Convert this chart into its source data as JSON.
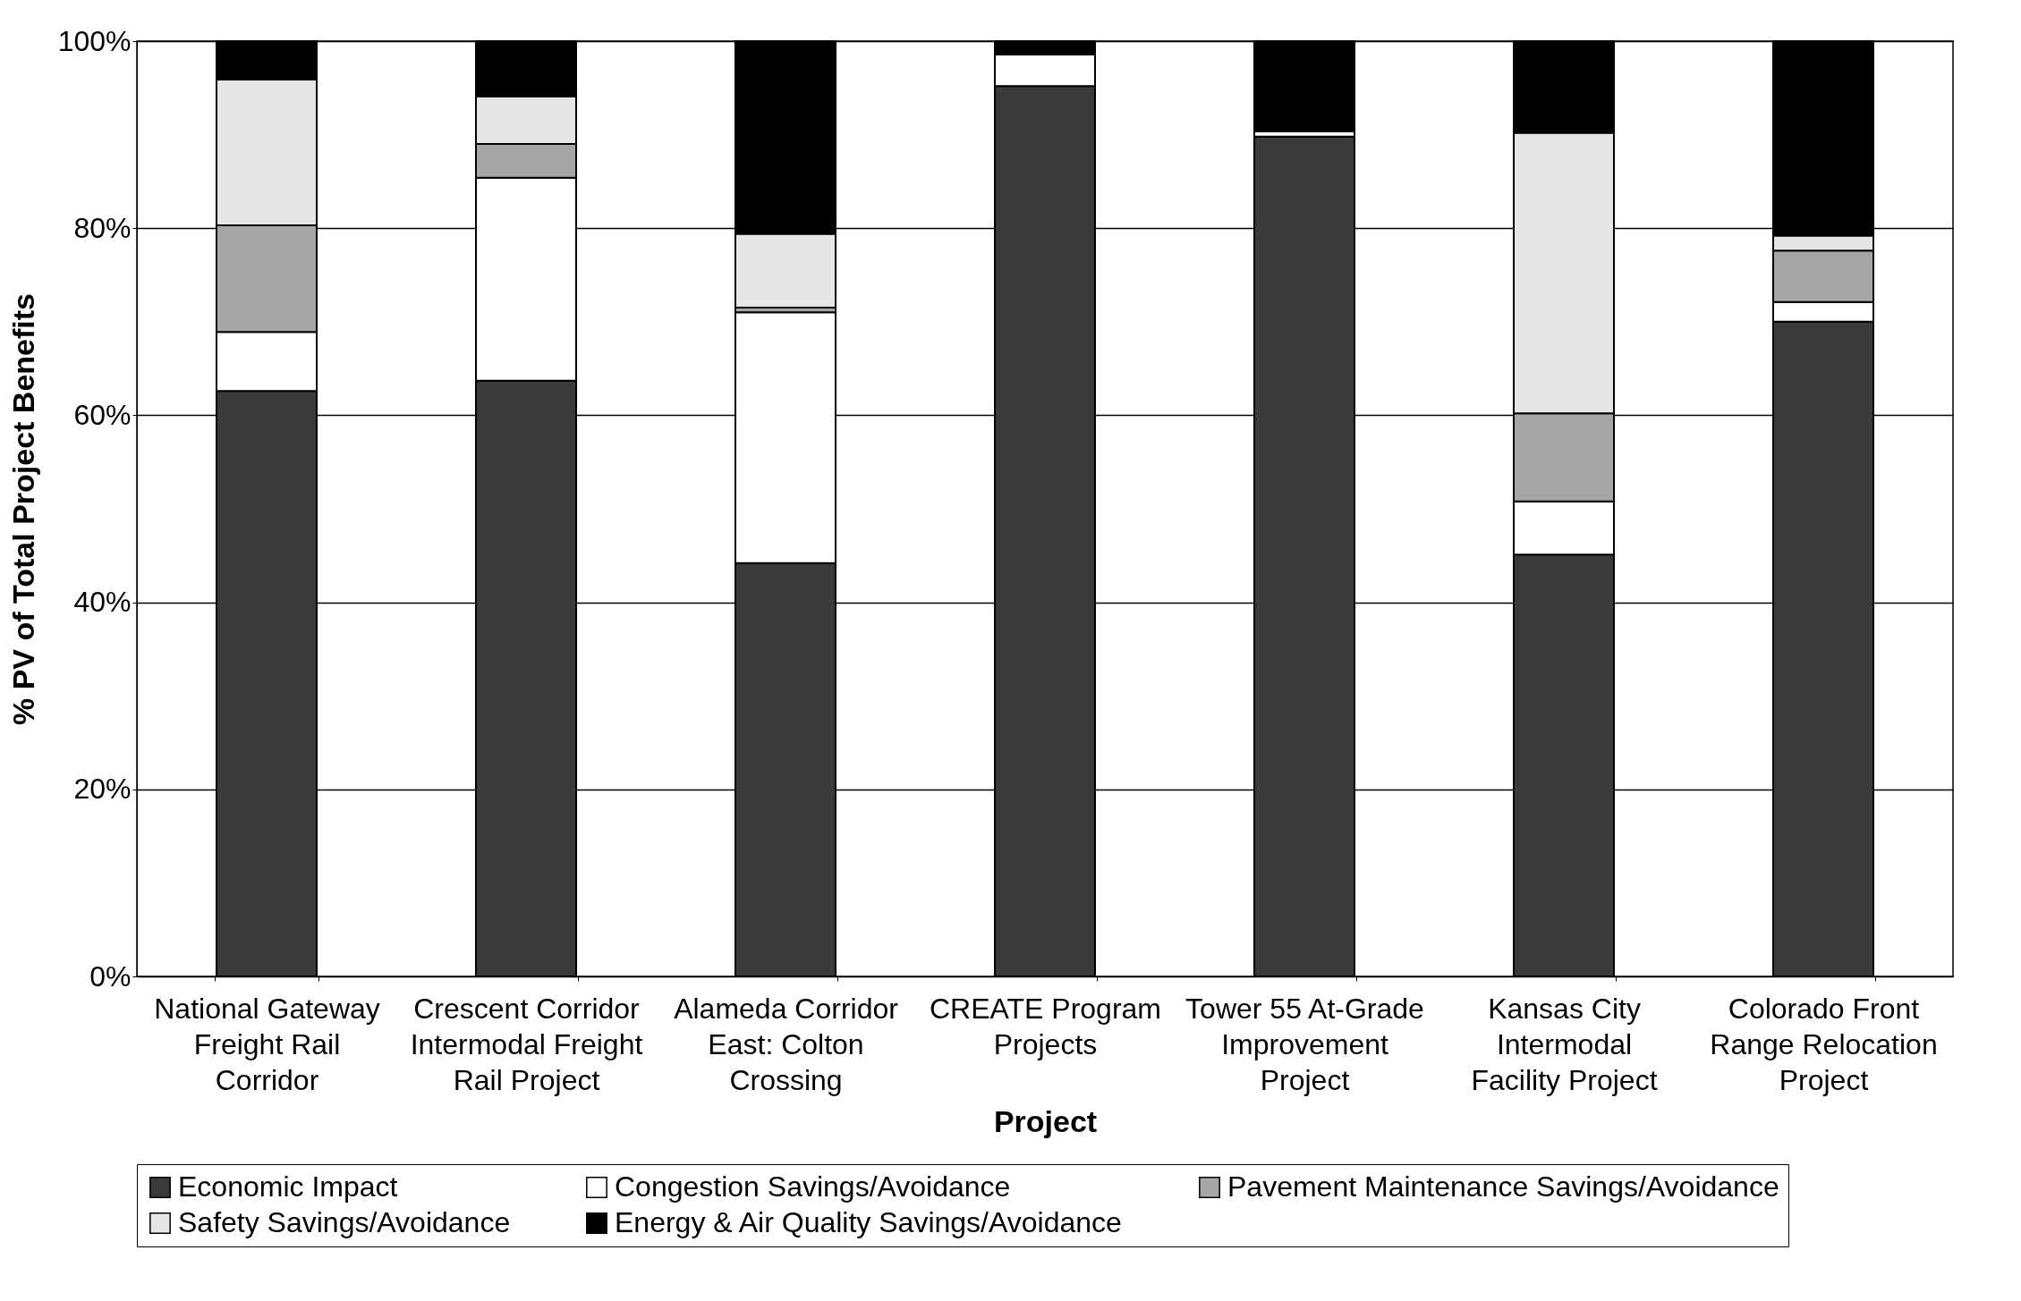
{
  "chart_data": {
    "type": "bar",
    "stacked": true,
    "xlabel": "Project",
    "ylabel": "% PV of Total Project Benefits",
    "categories": [
      "National Gateway Freight Rail Corridor",
      "Crescent Corridor Intermodal Freight Rail Project",
      "Alameda Corridor East: Colton Crossing",
      "CREATE Program Projects",
      "Tower 55 At-Grade Improvement Project",
      "Kansas City Intermodal Facility Project",
      "Colorado Front Range Relocation Project"
    ],
    "series": [
      {
        "name": "Economic Impact",
        "color": "#3a3a3a",
        "values": [
          62.6,
          63.7,
          44.2,
          95.2,
          89.8,
          45.1,
          70.0
        ]
      },
      {
        "name": "Congestion Savings/Avoidance",
        "color": "#ffffff",
        "values": [
          6.3,
          21.7,
          26.8,
          3.4,
          0.6,
          5.7,
          2.1
        ]
      },
      {
        "name": "Pavement Maintenance Savings/Avoidance",
        "color": "#a6a6a6",
        "values": [
          11.4,
          3.6,
          0.5,
          0,
          0,
          9.4,
          5.5
        ]
      },
      {
        "name": "Safety Savings/Avoidance",
        "color": "#e6e6e6",
        "values": [
          15.6,
          5.1,
          7.9,
          0,
          0,
          30.0,
          1.6
        ]
      },
      {
        "name": "Energy & Air Quality Savings/Avoidance",
        "color": "#000000",
        "values": [
          4.1,
          5.9,
          20.6,
          1.4,
          9.6,
          9.8,
          20.8
        ]
      }
    ],
    "ylim": [
      0,
      100
    ],
    "yticks": [
      {
        "value": 0,
        "label": "0%"
      },
      {
        "value": 20,
        "label": "20%"
      },
      {
        "value": 40,
        "label": "40%"
      },
      {
        "value": 60,
        "label": "60%"
      },
      {
        "value": 80,
        "label": "80%"
      },
      {
        "value": 100,
        "label": "100%"
      }
    ],
    "grid": "y",
    "legend": "bottom"
  }
}
